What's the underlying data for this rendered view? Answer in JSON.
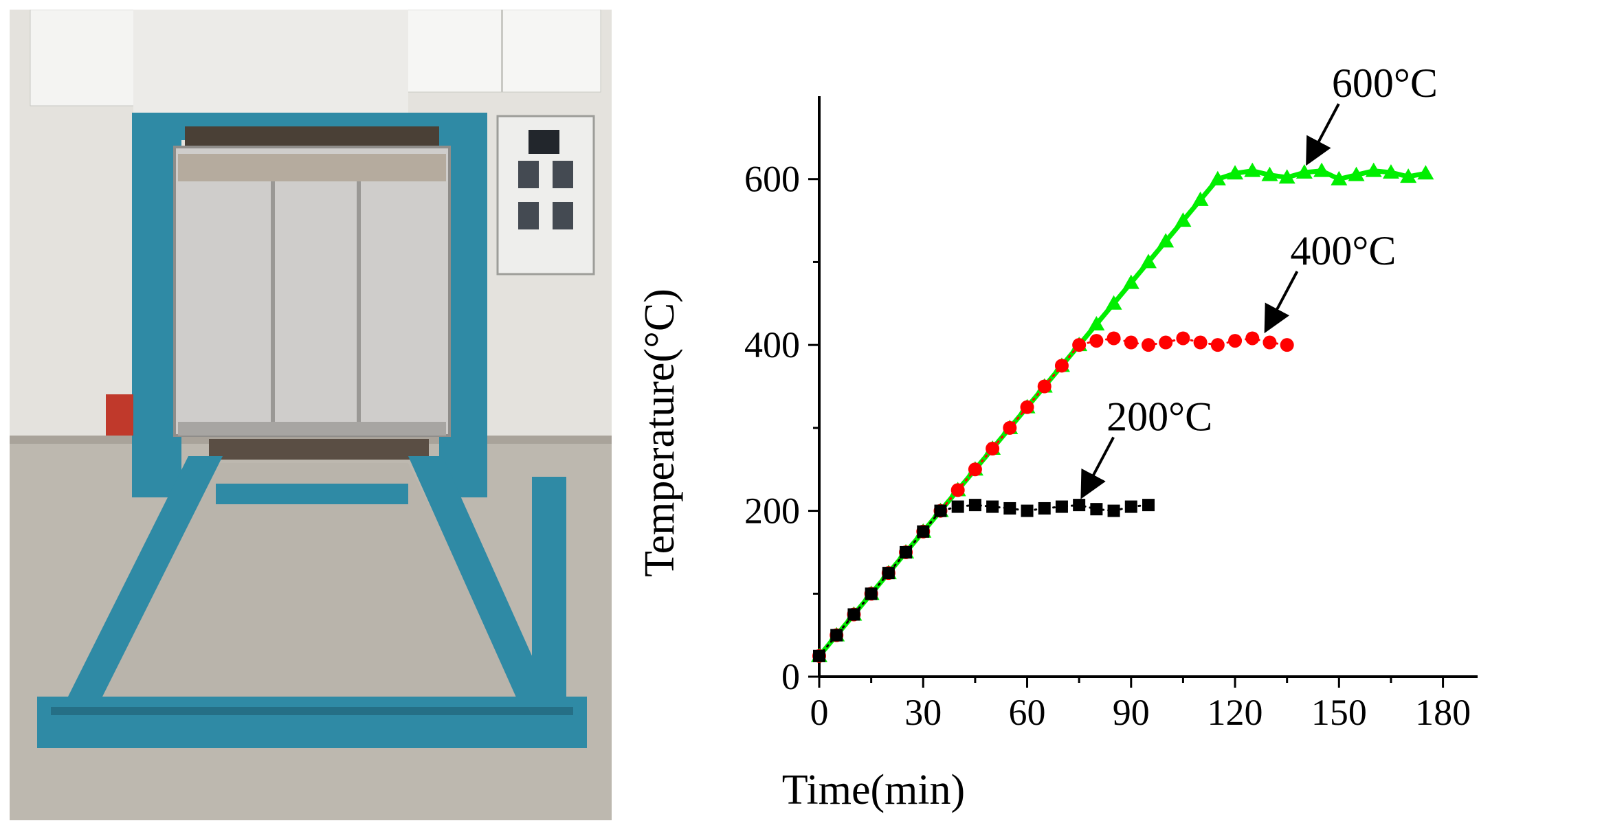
{
  "photo": {
    "subject": "electric-resistance-furnace-photo"
  },
  "chart_data": {
    "type": "line",
    "xlabel": "Time(min)",
    "ylabel": "Temperature(°C)",
    "xlim": [
      0,
      190
    ],
    "ylim": [
      0,
      700
    ],
    "xticks": [
      0,
      30,
      60,
      90,
      120,
      150,
      180
    ],
    "yticks": [
      0,
      200,
      400,
      600
    ],
    "grid": false,
    "series": [
      {
        "name": "600°C",
        "marker": "triangle",
        "color": "#00ee00",
        "x": [
          0,
          5,
          10,
          15,
          20,
          25,
          30,
          35,
          40,
          45,
          50,
          55,
          60,
          65,
          70,
          75,
          80,
          85,
          90,
          95,
          100,
          105,
          110,
          115,
          120,
          125,
          130,
          135,
          140,
          145,
          150,
          155,
          160,
          165,
          170,
          175
        ],
        "y": [
          25,
          50,
          75,
          100,
          125,
          150,
          175,
          200,
          225,
          250,
          275,
          300,
          325,
          350,
          375,
          400,
          425,
          450,
          475,
          500,
          525,
          550,
          575,
          600,
          607,
          610,
          605,
          602,
          608,
          610,
          600,
          605,
          610,
          608,
          603,
          607
        ]
      },
      {
        "name": "400°C",
        "marker": "circle",
        "color": "#ff0000",
        "x": [
          0,
          5,
          10,
          15,
          20,
          25,
          30,
          35,
          40,
          45,
          50,
          55,
          60,
          65,
          70,
          75,
          80,
          85,
          90,
          95,
          100,
          105,
          110,
          115,
          120,
          125,
          130,
          135
        ],
        "y": [
          25,
          50,
          75,
          100,
          125,
          150,
          175,
          200,
          225,
          250,
          275,
          300,
          325,
          350,
          375,
          400,
          405,
          408,
          403,
          400,
          403,
          408,
          403,
          400,
          405,
          408,
          403,
          400
        ]
      },
      {
        "name": "200°C",
        "marker": "square",
        "color": "#000000",
        "x": [
          0,
          5,
          10,
          15,
          20,
          25,
          30,
          35,
          40,
          45,
          50,
          55,
          60,
          65,
          70,
          75,
          80,
          85,
          90,
          95
        ],
        "y": [
          25,
          50,
          75,
          100,
          125,
          150,
          175,
          200,
          205,
          207,
          205,
          203,
          200,
          203,
          205,
          207,
          202,
          200,
          205,
          207
        ]
      }
    ],
    "annotations": [
      {
        "text": "600°C",
        "target": [
          140,
          612
        ]
      },
      {
        "text": "400°C",
        "target": [
          128,
          410
        ]
      },
      {
        "text": "200°C",
        "target": [
          75,
          210
        ]
      }
    ]
  }
}
